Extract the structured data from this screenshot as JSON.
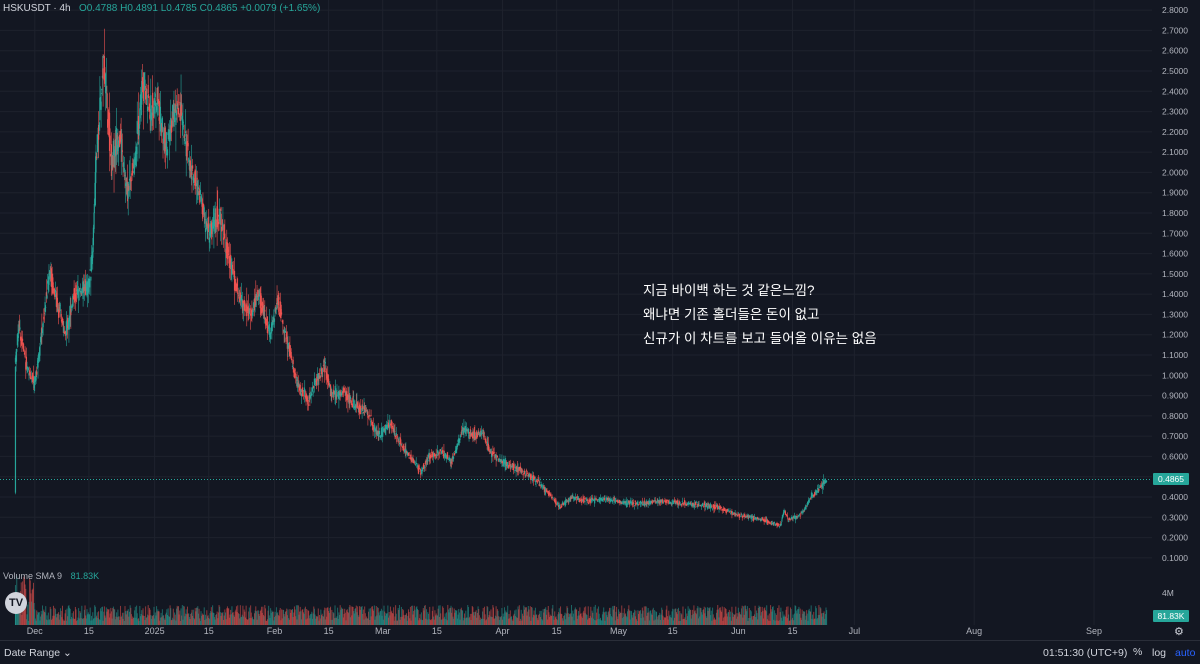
{
  "legend": {
    "symbol": "HSKUSDT · 4h",
    "ohlc": "O0.4788 H0.4891 L0.4785 C0.4865 +0.0079 (+1.65%)"
  },
  "volume_legend": {
    "label": "Volume SMA 9",
    "value": "81.83K"
  },
  "annotation": [
    "지금 바이백 하는 것 같은느낌?",
    "왜냐면 기존 홀더들은 돈이 없고",
    "신규가 이 차트를 보고  들어올 이유는 없음"
  ],
  "footer": {
    "date_range": "Date Range ⌄",
    "clock": "01:51:30 (UTC+9)",
    "percent": "%",
    "log": "log",
    "auto": "auto"
  },
  "colors": {
    "up": "#26a69a",
    "down": "#ef5350",
    "background": "#131722",
    "last_price_line": "#26a69a"
  },
  "icons": {
    "logo": "tradingview-logo-icon",
    "settings": "gear-icon"
  },
  "chart_data": {
    "type": "candlestick",
    "symbol": "HSKUSDT",
    "interval": "4h",
    "last_price": "0.4865",
    "last_price_value": 0.4865,
    "volume_last": "81.83K",
    "volume_axis_label": "4M",
    "ylim": [
      0.05,
      2.85
    ],
    "y_ticks": [
      0.1,
      0.2,
      0.3,
      0.4,
      0.5,
      0.6,
      0.7,
      0.8,
      0.9,
      1.0,
      1.1,
      1.2,
      1.3,
      1.4,
      1.5,
      1.6,
      1.7,
      1.8,
      1.9,
      2.0,
      2.1,
      2.2,
      2.3,
      2.4,
      2.5,
      2.6,
      2.7,
      2.8
    ],
    "y_tick_labels": [
      "0.1000",
      "0.2000",
      "0.3000",
      "0.4000",
      "0.5000",
      "0.6000",
      "0.7000",
      "0.8000",
      "0.9000",
      "1.0000",
      "1.1000",
      "1.2000",
      "1.3000",
      "1.4000",
      "1.5000",
      "1.6000",
      "1.7000",
      "1.8000",
      "1.9000",
      "2.0000",
      "2.1000",
      "2.2000",
      "2.3000",
      "2.4000",
      "2.5000",
      "2.6000",
      "2.7000",
      "2.8000"
    ],
    "x_ticks": [
      {
        "date": "2024-12-01",
        "label": "Dec"
      },
      {
        "date": "2024-12-15",
        "label": "15"
      },
      {
        "date": "2025-01-01",
        "label": "2025"
      },
      {
        "date": "2025-01-15",
        "label": "15"
      },
      {
        "date": "2025-02-01",
        "label": "Feb"
      },
      {
        "date": "2025-02-15",
        "label": "15"
      },
      {
        "date": "2025-03-01",
        "label": "Mar"
      },
      {
        "date": "2025-03-15",
        "label": "15"
      },
      {
        "date": "2025-04-01",
        "label": "Apr"
      },
      {
        "date": "2025-04-15",
        "label": "15"
      },
      {
        "date": "2025-05-01",
        "label": "May"
      },
      {
        "date": "2025-05-15",
        "label": "15"
      },
      {
        "date": "2025-06-01",
        "label": "Jun"
      },
      {
        "date": "2025-06-15",
        "label": "15"
      },
      {
        "date": "2025-07-01",
        "label": "Jul"
      },
      {
        "date": "2025-08-01",
        "label": "Aug"
      },
      {
        "date": "2025-09-01",
        "label": "Sep"
      }
    ],
    "x_range": [
      "2024-11-22",
      "2025-09-16"
    ],
    "price_path": [
      {
        "date": "2024-11-26",
        "price": 0.42
      },
      {
        "date": "2024-11-26",
        "price": 1.05
      },
      {
        "date": "2024-11-27",
        "price": 1.25
      },
      {
        "date": "2024-11-29",
        "price": 1.05
      },
      {
        "date": "2024-12-01",
        "price": 0.95
      },
      {
        "date": "2024-12-03",
        "price": 1.22
      },
      {
        "date": "2024-12-05",
        "price": 1.52
      },
      {
        "date": "2024-12-07",
        "price": 1.35
      },
      {
        "date": "2024-12-09",
        "price": 1.2
      },
      {
        "date": "2024-12-11",
        "price": 1.38
      },
      {
        "date": "2024-12-13",
        "price": 1.42
      },
      {
        "date": "2024-12-15",
        "price": 1.43
      },
      {
        "date": "2024-12-16",
        "price": 1.58
      },
      {
        "date": "2024-12-17",
        "price": 2.05
      },
      {
        "date": "2024-12-19",
        "price": 2.55
      },
      {
        "date": "2024-12-21",
        "price": 2.05
      },
      {
        "date": "2024-12-23",
        "price": 2.2
      },
      {
        "date": "2024-12-25",
        "price": 1.9
      },
      {
        "date": "2024-12-27",
        "price": 2.05
      },
      {
        "date": "2024-12-29",
        "price": 2.45
      },
      {
        "date": "2024-12-31",
        "price": 2.3
      },
      {
        "date": "2025-01-02",
        "price": 2.35
      },
      {
        "date": "2025-01-04",
        "price": 2.1
      },
      {
        "date": "2025-01-06",
        "price": 2.28
      },
      {
        "date": "2025-01-08",
        "price": 2.3
      },
      {
        "date": "2025-01-10",
        "price": 2.05
      },
      {
        "date": "2025-01-13",
        "price": 1.88
      },
      {
        "date": "2025-01-15",
        "price": 1.7
      },
      {
        "date": "2025-01-18",
        "price": 1.8
      },
      {
        "date": "2025-01-20",
        "price": 1.6
      },
      {
        "date": "2025-01-23",
        "price": 1.38
      },
      {
        "date": "2025-01-26",
        "price": 1.3
      },
      {
        "date": "2025-01-28",
        "price": 1.4
      },
      {
        "date": "2025-01-31",
        "price": 1.2
      },
      {
        "date": "2025-02-02",
        "price": 1.37
      },
      {
        "date": "2025-02-04",
        "price": 1.2
      },
      {
        "date": "2025-02-07",
        "price": 0.95
      },
      {
        "date": "2025-02-10",
        "price": 0.88
      },
      {
        "date": "2025-02-12",
        "price": 0.98
      },
      {
        "date": "2025-02-14",
        "price": 1.05
      },
      {
        "date": "2025-02-16",
        "price": 0.9
      },
      {
        "date": "2025-02-19",
        "price": 0.92
      },
      {
        "date": "2025-02-22",
        "price": 0.85
      },
      {
        "date": "2025-02-25",
        "price": 0.82
      },
      {
        "date": "2025-02-28",
        "price": 0.7
      },
      {
        "date": "2025-03-03",
        "price": 0.76
      },
      {
        "date": "2025-03-06",
        "price": 0.65
      },
      {
        "date": "2025-03-09",
        "price": 0.58
      },
      {
        "date": "2025-03-11",
        "price": 0.52
      },
      {
        "date": "2025-03-13",
        "price": 0.6
      },
      {
        "date": "2025-03-16",
        "price": 0.62
      },
      {
        "date": "2025-03-19",
        "price": 0.58
      },
      {
        "date": "2025-03-22",
        "price": 0.74
      },
      {
        "date": "2025-03-25",
        "price": 0.7
      },
      {
        "date": "2025-03-27",
        "price": 0.72
      },
      {
        "date": "2025-03-29",
        "price": 0.62
      },
      {
        "date": "2025-04-01",
        "price": 0.57
      },
      {
        "date": "2025-04-04",
        "price": 0.55
      },
      {
        "date": "2025-04-07",
        "price": 0.52
      },
      {
        "date": "2025-04-10",
        "price": 0.48
      },
      {
        "date": "2025-04-13",
        "price": 0.42
      },
      {
        "date": "2025-04-16",
        "price": 0.35
      },
      {
        "date": "2025-04-19",
        "price": 0.4
      },
      {
        "date": "2025-04-23",
        "price": 0.38
      },
      {
        "date": "2025-04-28",
        "price": 0.39
      },
      {
        "date": "2025-05-03",
        "price": 0.37
      },
      {
        "date": "2025-05-08",
        "price": 0.37
      },
      {
        "date": "2025-05-12",
        "price": 0.38
      },
      {
        "date": "2025-05-17",
        "price": 0.37
      },
      {
        "date": "2025-05-22",
        "price": 0.36
      },
      {
        "date": "2025-05-27",
        "price": 0.35
      },
      {
        "date": "2025-06-01",
        "price": 0.31
      },
      {
        "date": "2025-06-04",
        "price": 0.3
      },
      {
        "date": "2025-06-07",
        "price": 0.29
      },
      {
        "date": "2025-06-10",
        "price": 0.27
      },
      {
        "date": "2025-06-12",
        "price": 0.26
      },
      {
        "date": "2025-06-13",
        "price": 0.33
      },
      {
        "date": "2025-06-14",
        "price": 0.29
      },
      {
        "date": "2025-06-16",
        "price": 0.3
      },
      {
        "date": "2025-06-18",
        "price": 0.33
      },
      {
        "date": "2025-06-20",
        "price": 0.4
      },
      {
        "date": "2025-06-22",
        "price": 0.44
      },
      {
        "date": "2025-06-24",
        "price": 0.4865
      }
    ]
  }
}
